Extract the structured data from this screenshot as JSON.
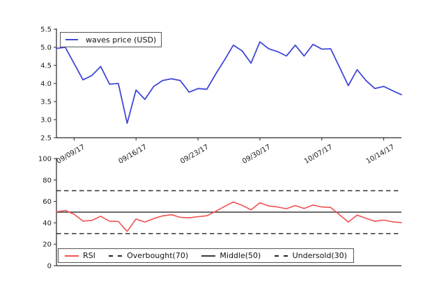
{
  "figure": {
    "background": "#ffffff",
    "axis_color": "#262626",
    "text_color": "#1a1a1a"
  },
  "chart_data": [
    {
      "type": "line",
      "name": "price-panel",
      "x": [
        "09/07/17",
        "09/08/17",
        "09/09/17",
        "09/10/17",
        "09/11/17",
        "09/12/17",
        "09/13/17",
        "09/14/17",
        "09/15/17",
        "09/16/17",
        "09/17/17",
        "09/18/17",
        "09/19/17",
        "09/20/17",
        "09/21/17",
        "09/22/17",
        "09/23/17",
        "09/24/17",
        "09/25/17",
        "09/26/17",
        "09/27/17",
        "09/28/17",
        "09/29/17",
        "09/30/17",
        "10/01/17",
        "10/02/17",
        "10/03/17",
        "10/04/17",
        "10/05/17",
        "10/06/17",
        "10/07/17",
        "10/08/17",
        "10/09/17",
        "10/10/17",
        "10/11/17",
        "10/12/17",
        "10/13/17",
        "10/14/17",
        "10/15/17",
        "10/16/17"
      ],
      "series": [
        {
          "name": "waves price (USD)",
          "color": "#3f48d8",
          "values": [
            4.97,
            5.0,
            4.55,
            4.1,
            4.22,
            4.47,
            3.98,
            4.0,
            2.9,
            3.82,
            3.56,
            3.92,
            4.08,
            4.13,
            4.08,
            3.76,
            3.86,
            3.84,
            4.26,
            4.65,
            5.06,
            4.9,
            4.56,
            5.15,
            4.96,
            4.88,
            4.76,
            5.06,
            4.76,
            5.08,
            4.95,
            4.96,
            4.45,
            3.94,
            4.38,
            4.08,
            3.86,
            3.92,
            3.8,
            3.69
          ]
        }
      ],
      "ylim": [
        2.5,
        5.5
      ],
      "yticks": [
        2.5,
        3.0,
        3.5,
        4.0,
        4.5,
        5.0,
        5.5
      ],
      "ytick_labels": [
        "2.5",
        "3.0",
        "3.5",
        "4.0",
        "4.5",
        "5.0",
        "5.5"
      ],
      "xtick_indices": [
        2,
        9,
        16,
        23,
        30,
        37
      ],
      "xtick_labels": [
        "09/09/17",
        "09/16/17",
        "09/23/17",
        "09/30/17",
        "10/07/17",
        "10/14/17"
      ],
      "grid": false,
      "legend_position": "upper left"
    },
    {
      "type": "line",
      "name": "rsi-panel",
      "x": [
        "09/07/17",
        "09/08/17",
        "09/09/17",
        "09/10/17",
        "09/11/17",
        "09/12/17",
        "09/13/17",
        "09/14/17",
        "09/15/17",
        "09/16/17",
        "09/17/17",
        "09/18/17",
        "09/19/17",
        "09/20/17",
        "09/21/17",
        "09/22/17",
        "09/23/17",
        "09/24/17",
        "09/25/17",
        "09/26/17",
        "09/27/17",
        "09/28/17",
        "09/29/17",
        "09/30/17",
        "10/01/17",
        "10/02/17",
        "10/03/17",
        "10/04/17",
        "10/05/17",
        "10/06/17",
        "10/07/17",
        "10/08/17",
        "10/09/17",
        "10/10/17",
        "10/11/17",
        "10/12/17",
        "10/13/17",
        "10/14/17",
        "10/15/17",
        "10/16/17"
      ],
      "series": [
        {
          "name": "RSI",
          "color": "#ef5151",
          "values": [
            50.3,
            51.6,
            48.0,
            41.6,
            42.3,
            46.2,
            41.5,
            41.3,
            32.0,
            43.6,
            40.8,
            44.0,
            46.5,
            47.6,
            45.2,
            44.7,
            45.8,
            46.6,
            50.8,
            55.3,
            59.5,
            56.3,
            52.2,
            58.7,
            55.8,
            54.8,
            53.2,
            56.2,
            53.4,
            56.6,
            54.8,
            54.4,
            47.6,
            40.8,
            47.3,
            44.2,
            41.5,
            42.6,
            41.0,
            40.2
          ]
        }
      ],
      "hlines": [
        {
          "name": "Overbought(70)",
          "value": 70,
          "style": "dashed",
          "color": "#222222"
        },
        {
          "name": "Middle(50)",
          "value": 50,
          "style": "solid",
          "color": "#3a3a3a"
        },
        {
          "name": "Undersold(30)",
          "value": 30,
          "style": "dashed",
          "color": "#222222"
        }
      ],
      "ylim": [
        0,
        100
      ],
      "yticks": [
        0,
        20,
        40,
        60,
        80,
        100
      ],
      "ytick_labels": [
        "0",
        "20",
        "40",
        "60",
        "80",
        "100"
      ],
      "xtick_indices": [],
      "xtick_labels": [],
      "grid": false,
      "legend_position": "lower center"
    }
  ]
}
